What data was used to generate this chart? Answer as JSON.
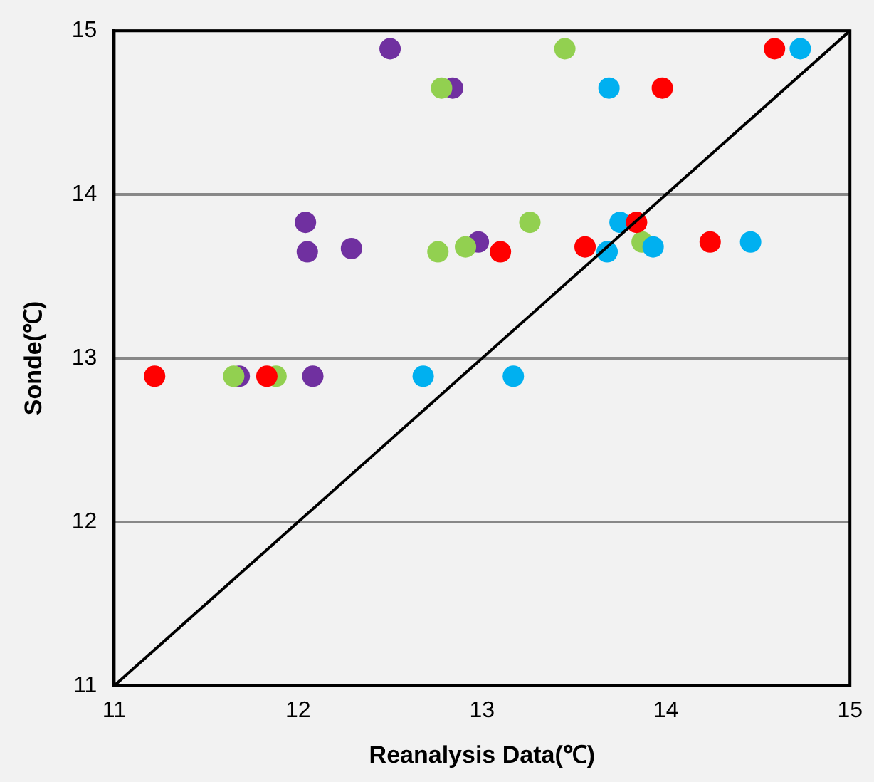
{
  "chart_data": {
    "type": "scatter",
    "xlabel": "Reanalysis Data(℃)",
    "ylabel": "Sonde(℃)",
    "xlim": [
      11,
      15
    ],
    "xticks": [
      11,
      12,
      13,
      14,
      15
    ],
    "ylim": [
      11,
      15
    ],
    "yticks": [
      11,
      12,
      13,
      14,
      15
    ],
    "grid": "y",
    "marker": "circle",
    "legend": false,
    "series": [
      {
        "color": "#7030a0",
        "x": [
          12.5,
          12.84,
          12.04,
          12.05,
          12.29,
          12.98,
          11.68,
          12.08
        ],
        "values": [
          14.89,
          14.65,
          13.83,
          13.65,
          13.67,
          13.71,
          12.89,
          12.89
        ]
      },
      {
        "color": "#92d050",
        "x": [
          13.45,
          12.78,
          13.26,
          12.76,
          12.91,
          13.87,
          11.65,
          11.88
        ],
        "values": [
          14.89,
          14.65,
          13.83,
          13.65,
          13.68,
          13.71,
          12.89,
          12.89
        ]
      },
      {
        "color": "#00b0f0",
        "x": [
          14.73,
          13.69,
          13.75,
          13.68,
          13.93,
          14.46,
          12.68,
          13.17
        ],
        "values": [
          14.89,
          14.65,
          13.83,
          13.65,
          13.68,
          13.71,
          12.89,
          12.89
        ]
      },
      {
        "color": "#ff0000",
        "x": [
          14.59,
          13.98,
          13.84,
          13.1,
          13.56,
          14.24,
          11.22,
          11.83
        ],
        "values": [
          14.89,
          14.65,
          13.83,
          13.65,
          13.68,
          13.71,
          12.89,
          12.89
        ]
      },
      {
        "type": "line",
        "color": "#000000",
        "line_style": "solid",
        "marker": "none",
        "x": [
          11,
          15
        ],
        "values": [
          11,
          15
        ]
      }
    ]
  }
}
